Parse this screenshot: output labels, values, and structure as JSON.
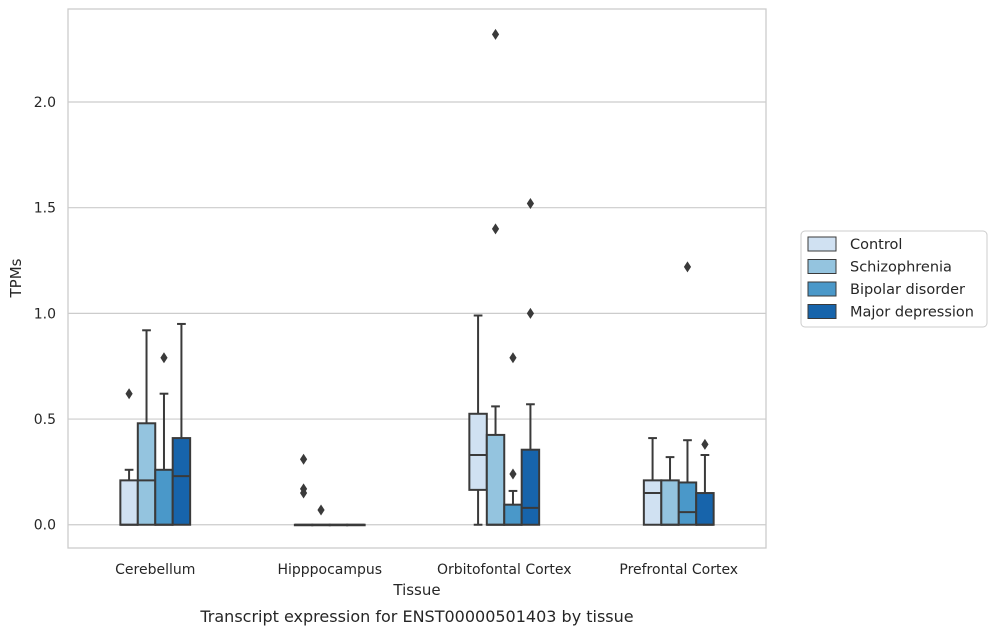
{
  "caption": "Transcript expression for ENST00000501403 by tissue",
  "chart_data": {
    "type": "box",
    "title": "",
    "xlabel": "Tissue",
    "ylabel": "TPMs",
    "ylim": [
      -0.11,
      2.44
    ],
    "yticks": [
      0.0,
      0.5,
      1.0,
      1.5,
      2.0
    ],
    "ytick_labels": [
      "0.0",
      "0.5",
      "1.0",
      "1.5",
      "2.0"
    ],
    "grid": "horizontal",
    "legend_position": "right",
    "categories": [
      "Cerebellum",
      "Hipppocampus",
      "Orbitofontal Cortex",
      "Prefrontal Cortex"
    ],
    "series": [
      {
        "name": "Control",
        "color": "#d0e1f2",
        "boxes": [
          {
            "q1": 0,
            "median": 0,
            "q3": 0.21,
            "whisker_low": 0,
            "whisker_high": 0.26,
            "outliers": [
              0.62
            ]
          },
          {
            "q1": 0,
            "median": 0,
            "q3": 0,
            "whisker_low": 0,
            "whisker_high": 0,
            "outliers": [
              0.15,
              0.17,
              0.31
            ]
          },
          {
            "q1": 0.165,
            "median": 0.33,
            "q3": 0.525,
            "whisker_low": 0,
            "whisker_high": 0.99,
            "outliers": []
          },
          {
            "q1": 0,
            "median": 0.15,
            "q3": 0.21,
            "whisker_low": 0,
            "whisker_high": 0.41,
            "outliers": []
          }
        ]
      },
      {
        "name": "Schizophrenia",
        "color": "#94c4df",
        "boxes": [
          {
            "q1": 0,
            "median": 0.21,
            "q3": 0.48,
            "whisker_low": 0,
            "whisker_high": 0.92,
            "outliers": []
          },
          {
            "q1": 0,
            "median": 0,
            "q3": 0,
            "whisker_low": 0,
            "whisker_high": 0,
            "outliers": [
              0.07
            ]
          },
          {
            "q1": 0,
            "median": 0,
            "q3": 0.425,
            "whisker_low": 0,
            "whisker_high": 0.56,
            "outliers": [
              1.4,
              2.32
            ]
          },
          {
            "q1": 0,
            "median": 0,
            "q3": 0.21,
            "whisker_low": 0,
            "whisker_high": 0.32,
            "outliers": []
          }
        ]
      },
      {
        "name": "Bipolar disorder",
        "color": "#4a98c9",
        "boxes": [
          {
            "q1": 0,
            "median": 0,
            "q3": 0.26,
            "whisker_low": 0,
            "whisker_high": 0.62,
            "outliers": [
              0.79
            ]
          },
          {
            "q1": 0,
            "median": 0,
            "q3": 0,
            "whisker_low": 0,
            "whisker_high": 0,
            "outliers": []
          },
          {
            "q1": 0,
            "median": 0,
            "q3": 0.095,
            "whisker_low": 0,
            "whisker_high": 0.16,
            "outliers": [
              0.24,
              0.79
            ]
          },
          {
            "q1": 0,
            "median": 0.06,
            "q3": 0.2,
            "whisker_low": 0,
            "whisker_high": 0.4,
            "outliers": [
              1.22
            ]
          }
        ]
      },
      {
        "name": "Major depression",
        "color": "#1764ab",
        "boxes": [
          {
            "q1": 0,
            "median": 0.23,
            "q3": 0.41,
            "whisker_low": 0,
            "whisker_high": 0.95,
            "outliers": []
          },
          {
            "q1": 0,
            "median": 0,
            "q3": 0,
            "whisker_low": 0,
            "whisker_high": 0,
            "outliers": []
          },
          {
            "q1": 0,
            "median": 0.08,
            "q3": 0.355,
            "whisker_low": 0,
            "whisker_high": 0.57,
            "outliers": [
              1.0,
              1.52
            ]
          },
          {
            "q1": 0,
            "median": 0,
            "q3": 0.15,
            "whisker_low": 0,
            "whisker_high": 0.33,
            "outliers": [
              0.38
            ]
          }
        ]
      }
    ]
  }
}
